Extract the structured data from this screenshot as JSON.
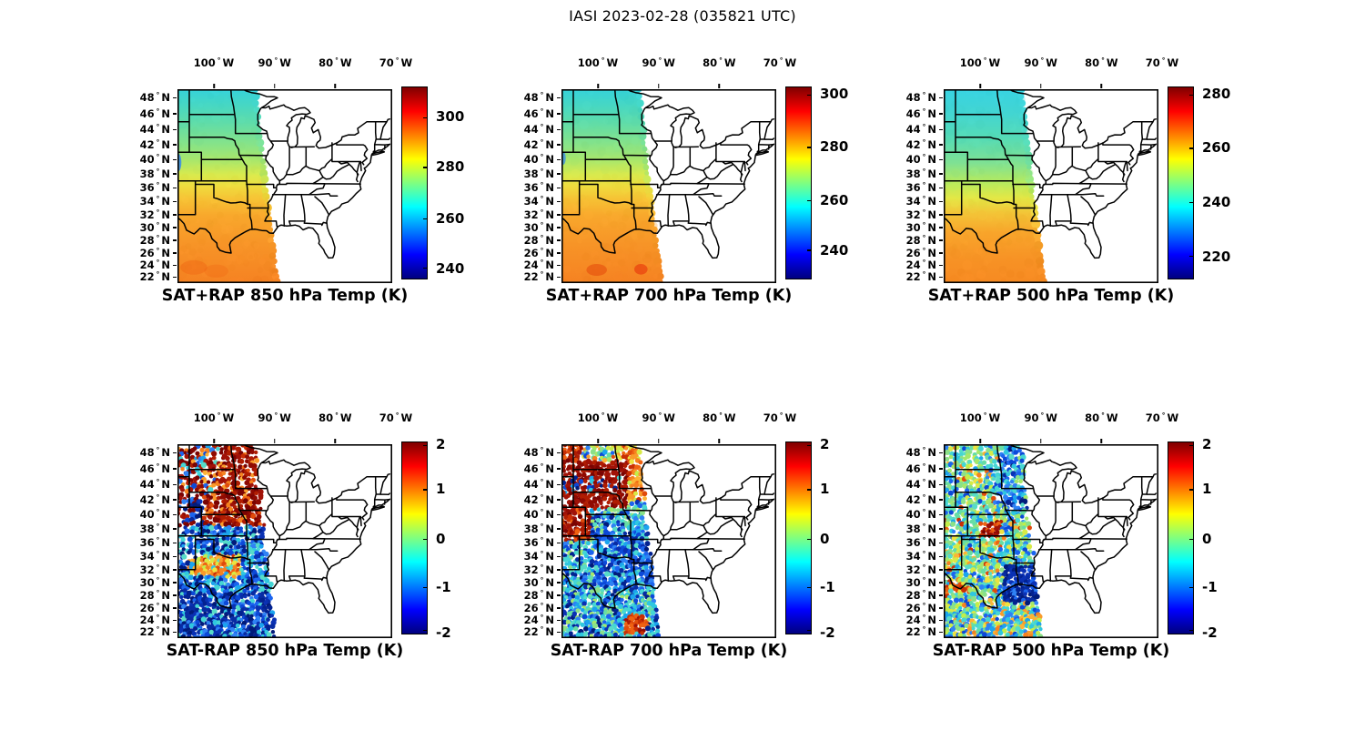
{
  "figure_title": "IASI 2023-02-28 (035821 UTC)",
  "axes": {
    "lon_ticks": [
      {
        "value": "100",
        "hemisphere": "W"
      },
      {
        "value": "90",
        "hemisphere": "W"
      },
      {
        "value": "80",
        "hemisphere": "W"
      },
      {
        "value": "70",
        "hemisphere": "W"
      }
    ],
    "lat_ticks": [
      {
        "value": "48",
        "hemisphere": "N"
      },
      {
        "value": "46",
        "hemisphere": "N"
      },
      {
        "value": "44",
        "hemisphere": "N"
      },
      {
        "value": "42",
        "hemisphere": "N"
      },
      {
        "value": "40",
        "hemisphere": "N"
      },
      {
        "value": "38",
        "hemisphere": "N"
      },
      {
        "value": "36",
        "hemisphere": "N"
      },
      {
        "value": "34",
        "hemisphere": "N"
      },
      {
        "value": "32",
        "hemisphere": "N"
      },
      {
        "value": "30",
        "hemisphere": "N"
      },
      {
        "value": "28",
        "hemisphere": "N"
      },
      {
        "value": "26",
        "hemisphere": "N"
      },
      {
        "value": "24",
        "hemisphere": "N"
      },
      {
        "value": "22",
        "hemisphere": "N"
      }
    ]
  },
  "panels": [
    {
      "id": "sat-plus-rap-850",
      "title": "SAT+RAP 850 hPa Temp (K)",
      "colorbar_ticks": [
        "300",
        "280",
        "260",
        "240"
      ]
    },
    {
      "id": "sat-plus-rap-700",
      "title": "SAT+RAP 700 hPa Temp (K)",
      "colorbar_ticks": [
        "300",
        "280",
        "260",
        "240"
      ]
    },
    {
      "id": "sat-plus-rap-500",
      "title": "SAT+RAP 500 hPa Temp (K)",
      "colorbar_ticks": [
        "280",
        "260",
        "240",
        "220"
      ]
    },
    {
      "id": "sat-minus-rap-850",
      "title": "SAT-RAP 850 hPa Temp (K)",
      "colorbar_ticks": [
        "2",
        "1",
        "0",
        "-1",
        "-2"
      ]
    },
    {
      "id": "sat-minus-rap-700",
      "title": "SAT-RAP 700 hPa Temp (K)",
      "colorbar_ticks": [
        "2",
        "1",
        "0",
        "-1",
        "-2"
      ]
    },
    {
      "id": "sat-minus-rap-500",
      "title": "SAT-RAP 500 hPa Temp (K)",
      "colorbar_ticks": [
        "2",
        "1",
        "0",
        "-1",
        "-2"
      ]
    }
  ],
  "chart_data": [
    {
      "type": "heatmap",
      "title": "SAT+RAP 850 hPa Temp (K)",
      "variable": "850 hPa temperature",
      "units": "K",
      "colormap": "jet",
      "colorbar_ticks": [
        300,
        280,
        260,
        240
      ],
      "colorbar_range": [
        236,
        312
      ],
      "map_extent": {
        "lon_deg_west": [
          106,
          70.6
        ],
        "lat_deg_north": [
          21,
          49
        ]
      },
      "data_coverage": "satellite swath west of ~93°W (north) to ~90°W (south)",
      "pattern": "smooth field: cyan ~252-262 K over northern plains, green ~268 K mid, orange ~288-296 K over Texas and Gulf; small blue streak ~238 K at west edge near 39-41N"
    },
    {
      "type": "heatmap",
      "title": "SAT+RAP 700 hPa Temp (K)",
      "variable": "700 hPa temperature",
      "units": "K",
      "colormap": "jet",
      "colorbar_ticks": [
        300,
        280,
        260,
        240
      ],
      "colorbar_range": [
        230,
        303
      ],
      "map_extent": {
        "lon_deg_west": [
          106,
          70.6
        ],
        "lat_deg_north": [
          21,
          49
        ]
      },
      "data_coverage": "satellite swath west of ~93°W (north) to ~90°W (south)",
      "pattern": "cyan ~252 K north grading to orange ~285-292 K south; red-orange patches ~295 K near 23-25N"
    },
    {
      "type": "heatmap",
      "title": "SAT+RAP 500 hPa Temp (K)",
      "variable": "500 hPa temperature",
      "units": "K",
      "colormap": "jet",
      "colorbar_ticks": [
        280,
        260,
        240,
        220
      ],
      "colorbar_range": [
        212,
        283
      ],
      "map_extent": {
        "lon_deg_west": [
          106,
          70.6
        ],
        "lat_deg_north": [
          21,
          49
        ]
      },
      "data_coverage": "satellite swath west of ~93°W (north) to ~90°W (south)",
      "pattern": "cyan ~238-246 K north of 42N, yellow ~255 K mid, orange ~265-272 K over Texas southward"
    },
    {
      "type": "heatmap",
      "title": "SAT-RAP 850 hPa Temp (K)",
      "variable": "850 hPa temperature difference (satellite minus RAP)",
      "units": "K",
      "colormap": "jet",
      "colorbar_ticks": [
        2,
        1,
        0,
        -1,
        -2
      ],
      "colorbar_range": [
        -2,
        2
      ],
      "map_extent": {
        "lon_deg_west": [
          106,
          70.6
        ],
        "lat_deg_north": [
          21,
          49
        ]
      },
      "data_coverage": "speckled retrieval footprints within swath west of ~93°W",
      "pattern": "dark-red warm bias +1.5..+2 K north of ~38N (Dakotas/Minnesota/Nebraska) with blue/cyan specks in NW; cold bias -0.5..-2 K south; orange/red streak near 31-33.5N; dark blue < -1.5 K over south Texas/Gulf"
    },
    {
      "type": "heatmap",
      "title": "SAT-RAP 700 hPa Temp (K)",
      "variable": "700 hPa temperature difference (satellite minus RAP)",
      "units": "K",
      "colormap": "jet",
      "colorbar_ticks": [
        2,
        1,
        0,
        -1,
        -2
      ],
      "colorbar_range": [
        -2,
        2
      ],
      "map_extent": {
        "lon_deg_west": [
          106,
          70.6
        ],
        "lat_deg_north": [
          21,
          49
        ]
      },
      "data_coverage": "speckled retrieval footprints within swath west of ~93°W",
      "pattern": "dark-red +2 K band 40-46N and along eastern Colorado/New Mexico to 36N; orange/yellow along NE swath edge; blue/cyan cold bias over Texas and Gulf; isolated +2 K blob near 23N 90W"
    },
    {
      "type": "heatmap",
      "title": "SAT-RAP 500 hPa Temp (K)",
      "variable": "500 hPa temperature difference (satellite minus RAP)",
      "units": "K",
      "colormap": "jet",
      "colorbar_ticks": [
        2,
        1,
        0,
        -1,
        -2
      ],
      "colorbar_range": [
        -2,
        2
      ],
      "map_extent": {
        "lon_deg_west": [
          106,
          70.6
        ],
        "lat_deg_north": [
          21,
          49
        ]
      },
      "data_coverage": "speckled retrieval footprints within swath west of ~93°W",
      "pattern": "mottled ±0.5 K cyan/green/yellow overall; +2 K dark-red blob near 37.5N 98W; -2 K dark-blue region over south Texas coast 24-28.5N; blue patches along NE swath edge; scattered orange specks SW"
    }
  ]
}
